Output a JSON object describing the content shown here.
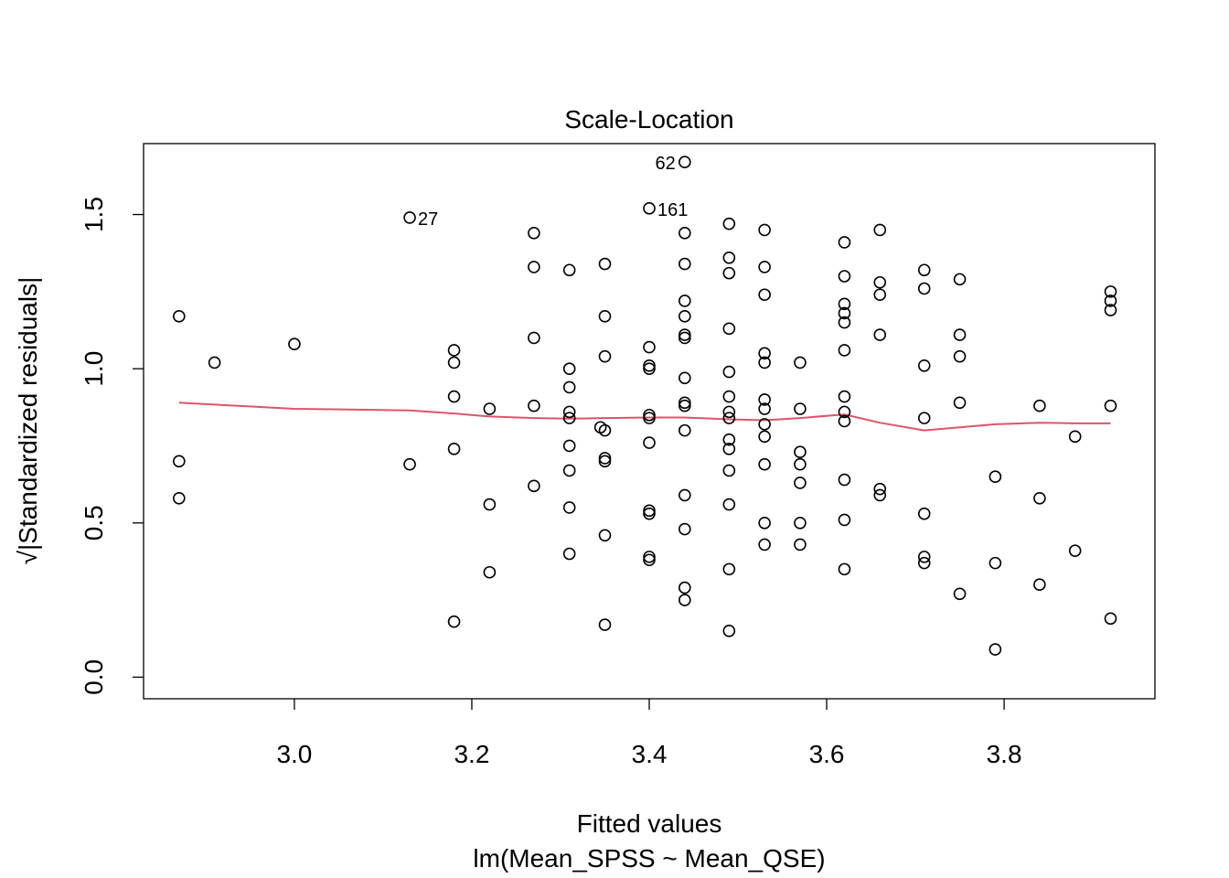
{
  "chart_data": {
    "type": "scatter",
    "title": "Scale-Location",
    "xlabel": "Fitted values",
    "subtitle": "lm(Mean_SPSS ~ Mean_QSE)",
    "ylabel": "√|Standardized residuals|",
    "xlim": [
      2.83,
      3.97
    ],
    "ylim": [
      -0.07,
      1.73
    ],
    "x_ticks": [
      3.0,
      3.2,
      3.4,
      3.6,
      3.8
    ],
    "x_tick_labels": [
      "3.0",
      "3.2",
      "3.4",
      "3.6",
      "3.8"
    ],
    "y_ticks": [
      0.0,
      0.5,
      1.0,
      1.5
    ],
    "y_tick_labels": [
      "0.0",
      "0.5",
      "1.0",
      "1.5"
    ],
    "grid": false,
    "colors": {
      "points": "#000000",
      "smooth": "#DF536B",
      "frame": "#000000"
    },
    "points": [
      {
        "x": 2.87,
        "y": 1.17
      },
      {
        "x": 2.87,
        "y": 0.7
      },
      {
        "x": 2.87,
        "y": 0.58
      },
      {
        "x": 2.91,
        "y": 1.02
      },
      {
        "x": 3.0,
        "y": 1.08
      },
      {
        "x": 3.13,
        "y": 1.49,
        "label": "27"
      },
      {
        "x": 3.13,
        "y": 0.69
      },
      {
        "x": 3.18,
        "y": 1.06
      },
      {
        "x": 3.18,
        "y": 1.02
      },
      {
        "x": 3.18,
        "y": 0.91
      },
      {
        "x": 3.18,
        "y": 0.74
      },
      {
        "x": 3.18,
        "y": 0.18
      },
      {
        "x": 3.22,
        "y": 0.87
      },
      {
        "x": 3.22,
        "y": 0.56
      },
      {
        "x": 3.22,
        "y": 0.34
      },
      {
        "x": 3.27,
        "y": 1.44
      },
      {
        "x": 3.27,
        "y": 1.33
      },
      {
        "x": 3.27,
        "y": 1.1
      },
      {
        "x": 3.27,
        "y": 0.88
      },
      {
        "x": 3.27,
        "y": 0.62
      },
      {
        "x": 3.31,
        "y": 1.32
      },
      {
        "x": 3.31,
        "y": 1.0
      },
      {
        "x": 3.31,
        "y": 0.94
      },
      {
        "x": 3.31,
        "y": 0.86
      },
      {
        "x": 3.31,
        "y": 0.84
      },
      {
        "x": 3.31,
        "y": 0.75
      },
      {
        "x": 3.31,
        "y": 0.67
      },
      {
        "x": 3.31,
        "y": 0.55
      },
      {
        "x": 3.31,
        "y": 0.4
      },
      {
        "x": 3.345,
        "y": 0.81
      },
      {
        "x": 3.35,
        "y": 1.34
      },
      {
        "x": 3.35,
        "y": 1.17
      },
      {
        "x": 3.35,
        "y": 1.04
      },
      {
        "x": 3.35,
        "y": 0.8
      },
      {
        "x": 3.35,
        "y": 0.71
      },
      {
        "x": 3.35,
        "y": 0.7
      },
      {
        "x": 3.35,
        "y": 0.46
      },
      {
        "x": 3.35,
        "y": 0.17
      },
      {
        "x": 3.4,
        "y": 1.52,
        "label": "161"
      },
      {
        "x": 3.4,
        "y": 1.07
      },
      {
        "x": 3.4,
        "y": 1.01
      },
      {
        "x": 3.4,
        "y": 1.0
      },
      {
        "x": 3.4,
        "y": 0.85
      },
      {
        "x": 3.4,
        "y": 0.84
      },
      {
        "x": 3.4,
        "y": 0.76
      },
      {
        "x": 3.4,
        "y": 0.54
      },
      {
        "x": 3.4,
        "y": 0.53
      },
      {
        "x": 3.4,
        "y": 0.39
      },
      {
        "x": 3.4,
        "y": 0.38
      },
      {
        "x": 3.44,
        "y": 1.67,
        "label": "62"
      },
      {
        "x": 3.44,
        "y": 1.44
      },
      {
        "x": 3.44,
        "y": 1.34
      },
      {
        "x": 3.44,
        "y": 1.22
      },
      {
        "x": 3.44,
        "y": 1.17
      },
      {
        "x": 3.44,
        "y": 1.11
      },
      {
        "x": 3.44,
        "y": 1.1
      },
      {
        "x": 3.44,
        "y": 0.97
      },
      {
        "x": 3.44,
        "y": 0.89
      },
      {
        "x": 3.44,
        "y": 0.88
      },
      {
        "x": 3.44,
        "y": 0.8
      },
      {
        "x": 3.44,
        "y": 0.59
      },
      {
        "x": 3.44,
        "y": 0.48
      },
      {
        "x": 3.44,
        "y": 0.29
      },
      {
        "x": 3.44,
        "y": 0.25
      },
      {
        "x": 3.49,
        "y": 1.47
      },
      {
        "x": 3.49,
        "y": 1.36
      },
      {
        "x": 3.49,
        "y": 1.31
      },
      {
        "x": 3.49,
        "y": 1.13
      },
      {
        "x": 3.49,
        "y": 0.99
      },
      {
        "x": 3.49,
        "y": 0.91
      },
      {
        "x": 3.49,
        "y": 0.86
      },
      {
        "x": 3.49,
        "y": 0.84
      },
      {
        "x": 3.49,
        "y": 0.77
      },
      {
        "x": 3.49,
        "y": 0.74
      },
      {
        "x": 3.49,
        "y": 0.67
      },
      {
        "x": 3.49,
        "y": 0.56
      },
      {
        "x": 3.49,
        "y": 0.35
      },
      {
        "x": 3.49,
        "y": 0.15
      },
      {
        "x": 3.53,
        "y": 1.45
      },
      {
        "x": 3.53,
        "y": 1.33
      },
      {
        "x": 3.53,
        "y": 1.24
      },
      {
        "x": 3.53,
        "y": 1.05
      },
      {
        "x": 3.53,
        "y": 1.02
      },
      {
        "x": 3.53,
        "y": 0.9
      },
      {
        "x": 3.53,
        "y": 0.87
      },
      {
        "x": 3.53,
        "y": 0.82
      },
      {
        "x": 3.53,
        "y": 0.78
      },
      {
        "x": 3.53,
        "y": 0.69
      },
      {
        "x": 3.53,
        "y": 0.5
      },
      {
        "x": 3.53,
        "y": 0.43
      },
      {
        "x": 3.57,
        "y": 1.02
      },
      {
        "x": 3.57,
        "y": 0.87
      },
      {
        "x": 3.57,
        "y": 0.73
      },
      {
        "x": 3.57,
        "y": 0.69
      },
      {
        "x": 3.57,
        "y": 0.63
      },
      {
        "x": 3.57,
        "y": 0.5
      },
      {
        "x": 3.57,
        "y": 0.43
      },
      {
        "x": 3.62,
        "y": 1.41
      },
      {
        "x": 3.62,
        "y": 1.3
      },
      {
        "x": 3.62,
        "y": 1.21
      },
      {
        "x": 3.62,
        "y": 1.18
      },
      {
        "x": 3.62,
        "y": 1.15
      },
      {
        "x": 3.62,
        "y": 1.06
      },
      {
        "x": 3.62,
        "y": 0.91
      },
      {
        "x": 3.62,
        "y": 0.86
      },
      {
        "x": 3.62,
        "y": 0.83
      },
      {
        "x": 3.62,
        "y": 0.64
      },
      {
        "x": 3.62,
        "y": 0.51
      },
      {
        "x": 3.62,
        "y": 0.35
      },
      {
        "x": 3.66,
        "y": 1.45
      },
      {
        "x": 3.66,
        "y": 1.28
      },
      {
        "x": 3.66,
        "y": 1.24
      },
      {
        "x": 3.66,
        "y": 1.11
      },
      {
        "x": 3.66,
        "y": 0.61
      },
      {
        "x": 3.66,
        "y": 0.59
      },
      {
        "x": 3.71,
        "y": 1.32
      },
      {
        "x": 3.71,
        "y": 1.26
      },
      {
        "x": 3.71,
        "y": 1.01
      },
      {
        "x": 3.71,
        "y": 0.84
      },
      {
        "x": 3.71,
        "y": 0.53
      },
      {
        "x": 3.71,
        "y": 0.39
      },
      {
        "x": 3.71,
        "y": 0.37
      },
      {
        "x": 3.75,
        "y": 1.29
      },
      {
        "x": 3.75,
        "y": 1.11
      },
      {
        "x": 3.75,
        "y": 1.04
      },
      {
        "x": 3.75,
        "y": 0.89
      },
      {
        "x": 3.75,
        "y": 0.27
      },
      {
        "x": 3.79,
        "y": 0.65
      },
      {
        "x": 3.79,
        "y": 0.37
      },
      {
        "x": 3.79,
        "y": 0.09
      },
      {
        "x": 3.84,
        "y": 0.88
      },
      {
        "x": 3.84,
        "y": 0.58
      },
      {
        "x": 3.84,
        "y": 0.3
      },
      {
        "x": 3.88,
        "y": 0.78
      },
      {
        "x": 3.88,
        "y": 0.41
      },
      {
        "x": 3.92,
        "y": 1.25
      },
      {
        "x": 3.92,
        "y": 1.22
      },
      {
        "x": 3.92,
        "y": 1.19
      },
      {
        "x": 3.92,
        "y": 0.88
      },
      {
        "x": 3.92,
        "y": 0.19
      }
    ],
    "smooth_line": {
      "x": [
        2.87,
        3.0,
        3.13,
        3.18,
        3.22,
        3.27,
        3.31,
        3.35,
        3.4,
        3.44,
        3.49,
        3.53,
        3.57,
        3.62,
        3.66,
        3.71,
        3.75,
        3.79,
        3.84,
        3.88,
        3.92
      ],
      "y": [
        0.89,
        0.87,
        0.865,
        0.855,
        0.845,
        0.84,
        0.838,
        0.84,
        0.842,
        0.842,
        0.836,
        0.833,
        0.84,
        0.852,
        0.825,
        0.8,
        0.81,
        0.82,
        0.825,
        0.823,
        0.823
      ]
    }
  }
}
